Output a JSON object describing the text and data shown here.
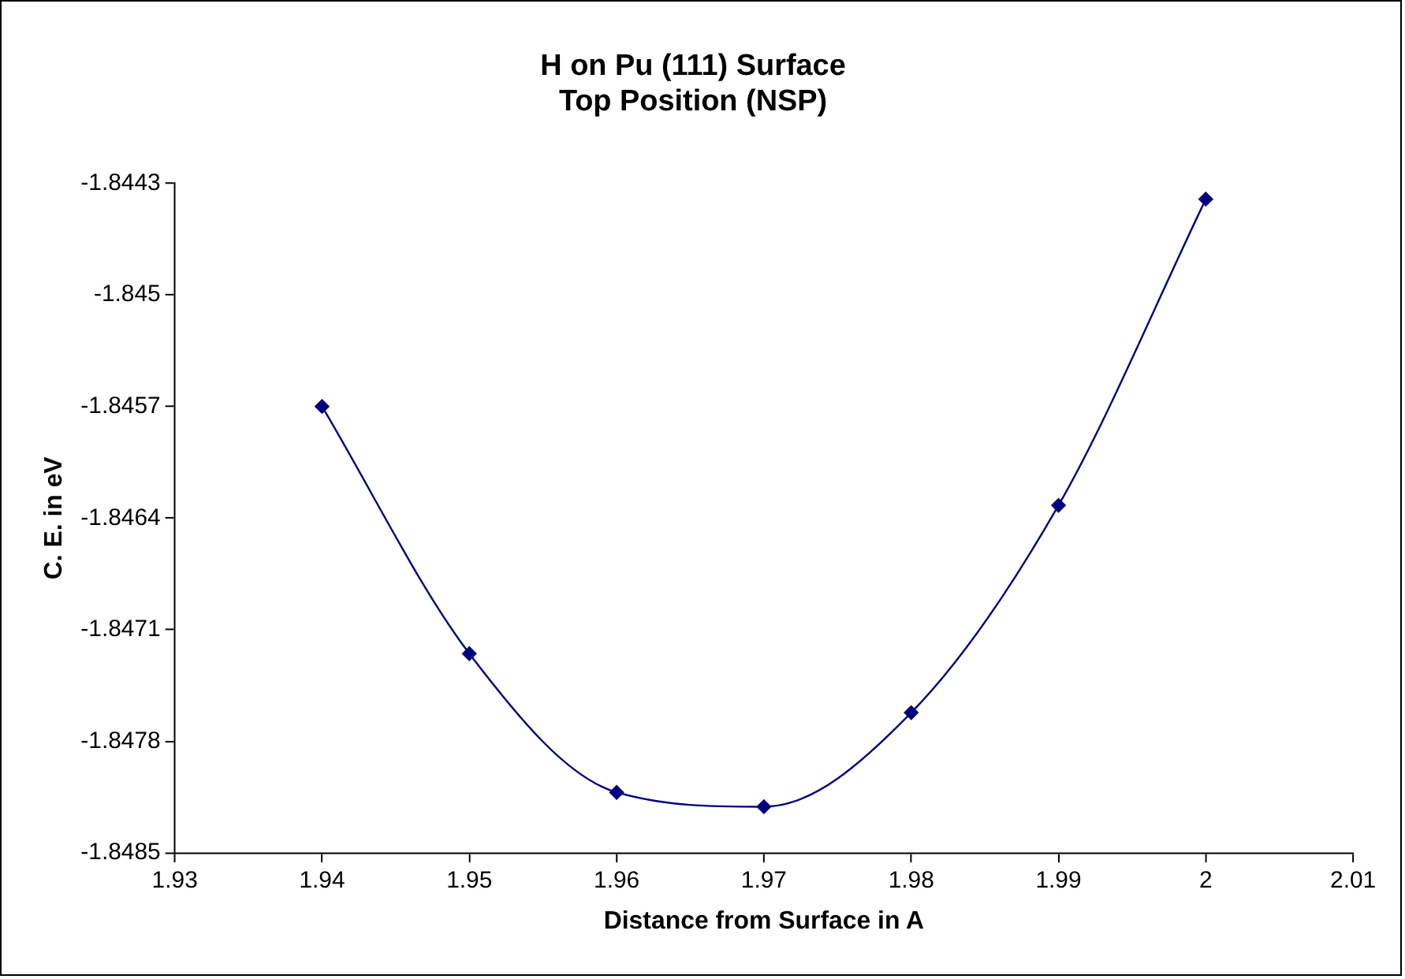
{
  "chart_data": {
    "type": "line",
    "title": "H on Pu (111) Surface\nTop Position (NSP)",
    "xlabel": "Distance from Surface in A",
    "ylabel": "C. E. in eV",
    "x": [
      1.94,
      1.95,
      1.96,
      1.97,
      1.98,
      1.99,
      2
    ],
    "series": [
      {
        "color": "#000080",
        "values": [
          -1.8457,
          -1.84725,
          -1.84812,
          -1.84821,
          -1.84762,
          -1.84632,
          -1.8444
        ]
      }
    ],
    "xlim": [
      1.93,
      2.01
    ],
    "xticks": [
      1.93,
      1.94,
      1.95,
      1.96,
      1.97,
      1.98,
      1.99,
      2,
      2.01
    ],
    "ylim": [
      -1.8485,
      -1.8443
    ],
    "yticks": [
      -1.8485,
      -1.8478,
      -1.8471,
      -1.8464,
      -1.8457,
      -1.845,
      -1.8443
    ],
    "grid": false,
    "legend": false,
    "marker": "diamond",
    "line_style": "solid"
  }
}
